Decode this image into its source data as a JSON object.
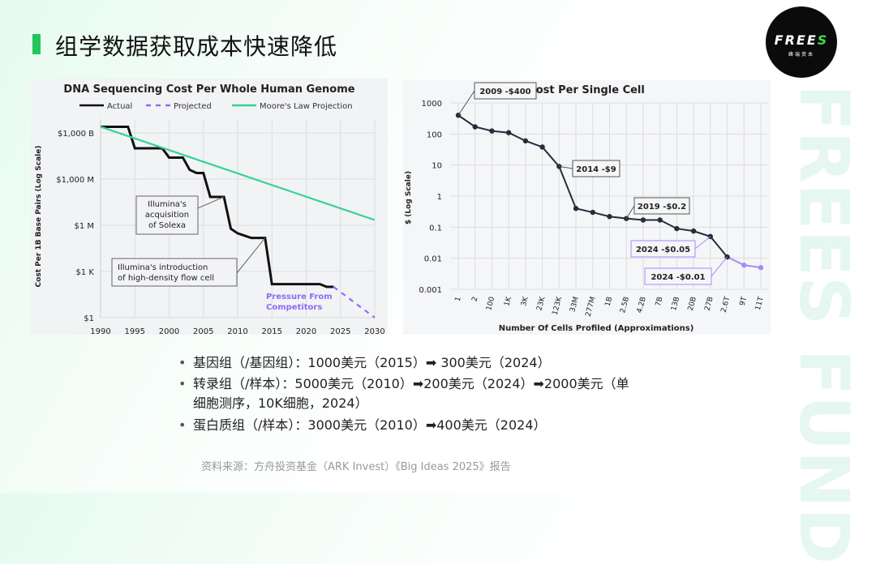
{
  "title": "组学数据获取成本快速降低",
  "logo": {
    "text": "FREES",
    "sub": "峰瑞资本",
    "accent": "#3ddc47"
  },
  "watermark": "FREES FUND",
  "bullets": [
    "基因组（/基因组）：1000美元（2015）➡ 300美元（2024）",
    "转录组（/样本）：5000美元（2010）➡200美元（2024）➡2000美元（单细胞测序，10K细胞，2024）",
    "蛋白质组（/样本）：3000美元（2010）➡400美元（2024）"
  ],
  "source": "资料来源：方舟投资基金（ARK Invest）《Big Ideas 2025》报告",
  "chart_data": [
    {
      "type": "line",
      "title": "DNA Sequencing Cost Per Whole Human Genome",
      "ylabel": "Cost Per 1B Base Pairs (Log Scale)",
      "xlabel": "",
      "yscale": "log",
      "xlim": [
        1990,
        2030
      ],
      "ylim": [
        1,
        1000000000000.0
      ],
      "xticks": [
        "1990",
        "1995",
        "2000",
        "2005",
        "2010",
        "2015",
        "2020",
        "2025",
        "2030"
      ],
      "yticks": [
        {
          "v": 1000000000000.0,
          "label": "$1,000 B"
        },
        {
          "v": 1000000000.0,
          "label": "$1,000 M"
        },
        {
          "v": 1000000.0,
          "label": "$1 M"
        },
        {
          "v": 1000.0,
          "label": "$1 K"
        },
        {
          "v": 1,
          "label": "$1"
        }
      ],
      "legend": "top",
      "series": [
        {
          "name": "Actual",
          "color": "#111111",
          "style": "solid",
          "x": [
            1990,
            1994,
            1995,
            1999,
            2000,
            2002,
            2003,
            2004,
            2005,
            2006,
            2008,
            2009,
            2010,
            2012,
            2014,
            2015,
            2022,
            2023,
            2024
          ],
          "y": [
            2500000000000.0,
            2500000000000.0,
            100000000000.0,
            100000000000.0,
            25000000000.0,
            25000000000.0,
            4000000000.0,
            2500000000.0,
            2500000000.0,
            70000000.0,
            70000000.0,
            600000.0,
            300000.0,
            150000.0,
            150000.0,
            150,
            150,
            100,
            100
          ]
        },
        {
          "name": "Projected",
          "color": "#8b6cf6",
          "style": "dashed",
          "x": [
            2024,
            2030
          ],
          "y": [
            100,
            1
          ]
        },
        {
          "name": "Moore's Law Projection",
          "color": "#34d399",
          "style": "solid",
          "x": [
            1990,
            2030
          ],
          "y": [
            2500000000000.0,
            2200000.0
          ]
        }
      ],
      "annotations": [
        {
          "text": [
            "Illumina's",
            "acquisition",
            "of Solexa"
          ],
          "x": 2008,
          "y": 70000000.0
        },
        {
          "text": [
            "Illumina's introduction",
            "of high-density flow cell"
          ],
          "x": 2014,
          "y": 150000.0
        },
        {
          "text": [
            "Pressure From",
            "Competitors"
          ],
          "color": "#8b6cf6"
        }
      ]
    },
    {
      "type": "line",
      "title": "Cost Per Single Cell",
      "ylabel": "$ (Log Scale)",
      "xlabel": "Number Of Cells Profiled (Approximations)",
      "yscale": "log",
      "ylim": [
        0.001,
        1000
      ],
      "yticks": [
        "1000",
        "100",
        "10",
        "1",
        "0.1",
        "0.01",
        "0.001"
      ],
      "categories": [
        "1",
        "2",
        "100",
        "1K",
        "3K",
        "23K",
        "123K",
        "33M",
        "277M",
        "1B",
        "2.5B",
        "4.2B",
        "7B",
        "13B",
        "20B",
        "27B",
        "2.6T",
        "9T",
        "11T"
      ],
      "values": [
        400,
        170,
        125,
        110,
        60,
        38,
        9,
        0.4,
        0.3,
        0.22,
        0.19,
        0.17,
        0.17,
        0.09,
        0.075,
        0.05,
        0.011,
        0.006,
        0.005
      ],
      "colors": {
        "actual": "#2a2a3a",
        "projected": "#a78bfa"
      },
      "annotations": [
        {
          "text": "2009 -$400",
          "index": 0
        },
        {
          "text": "2014 -$9",
          "index": 6
        },
        {
          "text": "2019 -$0.2",
          "index": 10
        },
        {
          "text": "2024 -$0.05",
          "index": 15,
          "color": "#a78bfa"
        },
        {
          "text": "2024 -$0.01",
          "index": 16,
          "color": "#a78bfa"
        }
      ]
    }
  ]
}
